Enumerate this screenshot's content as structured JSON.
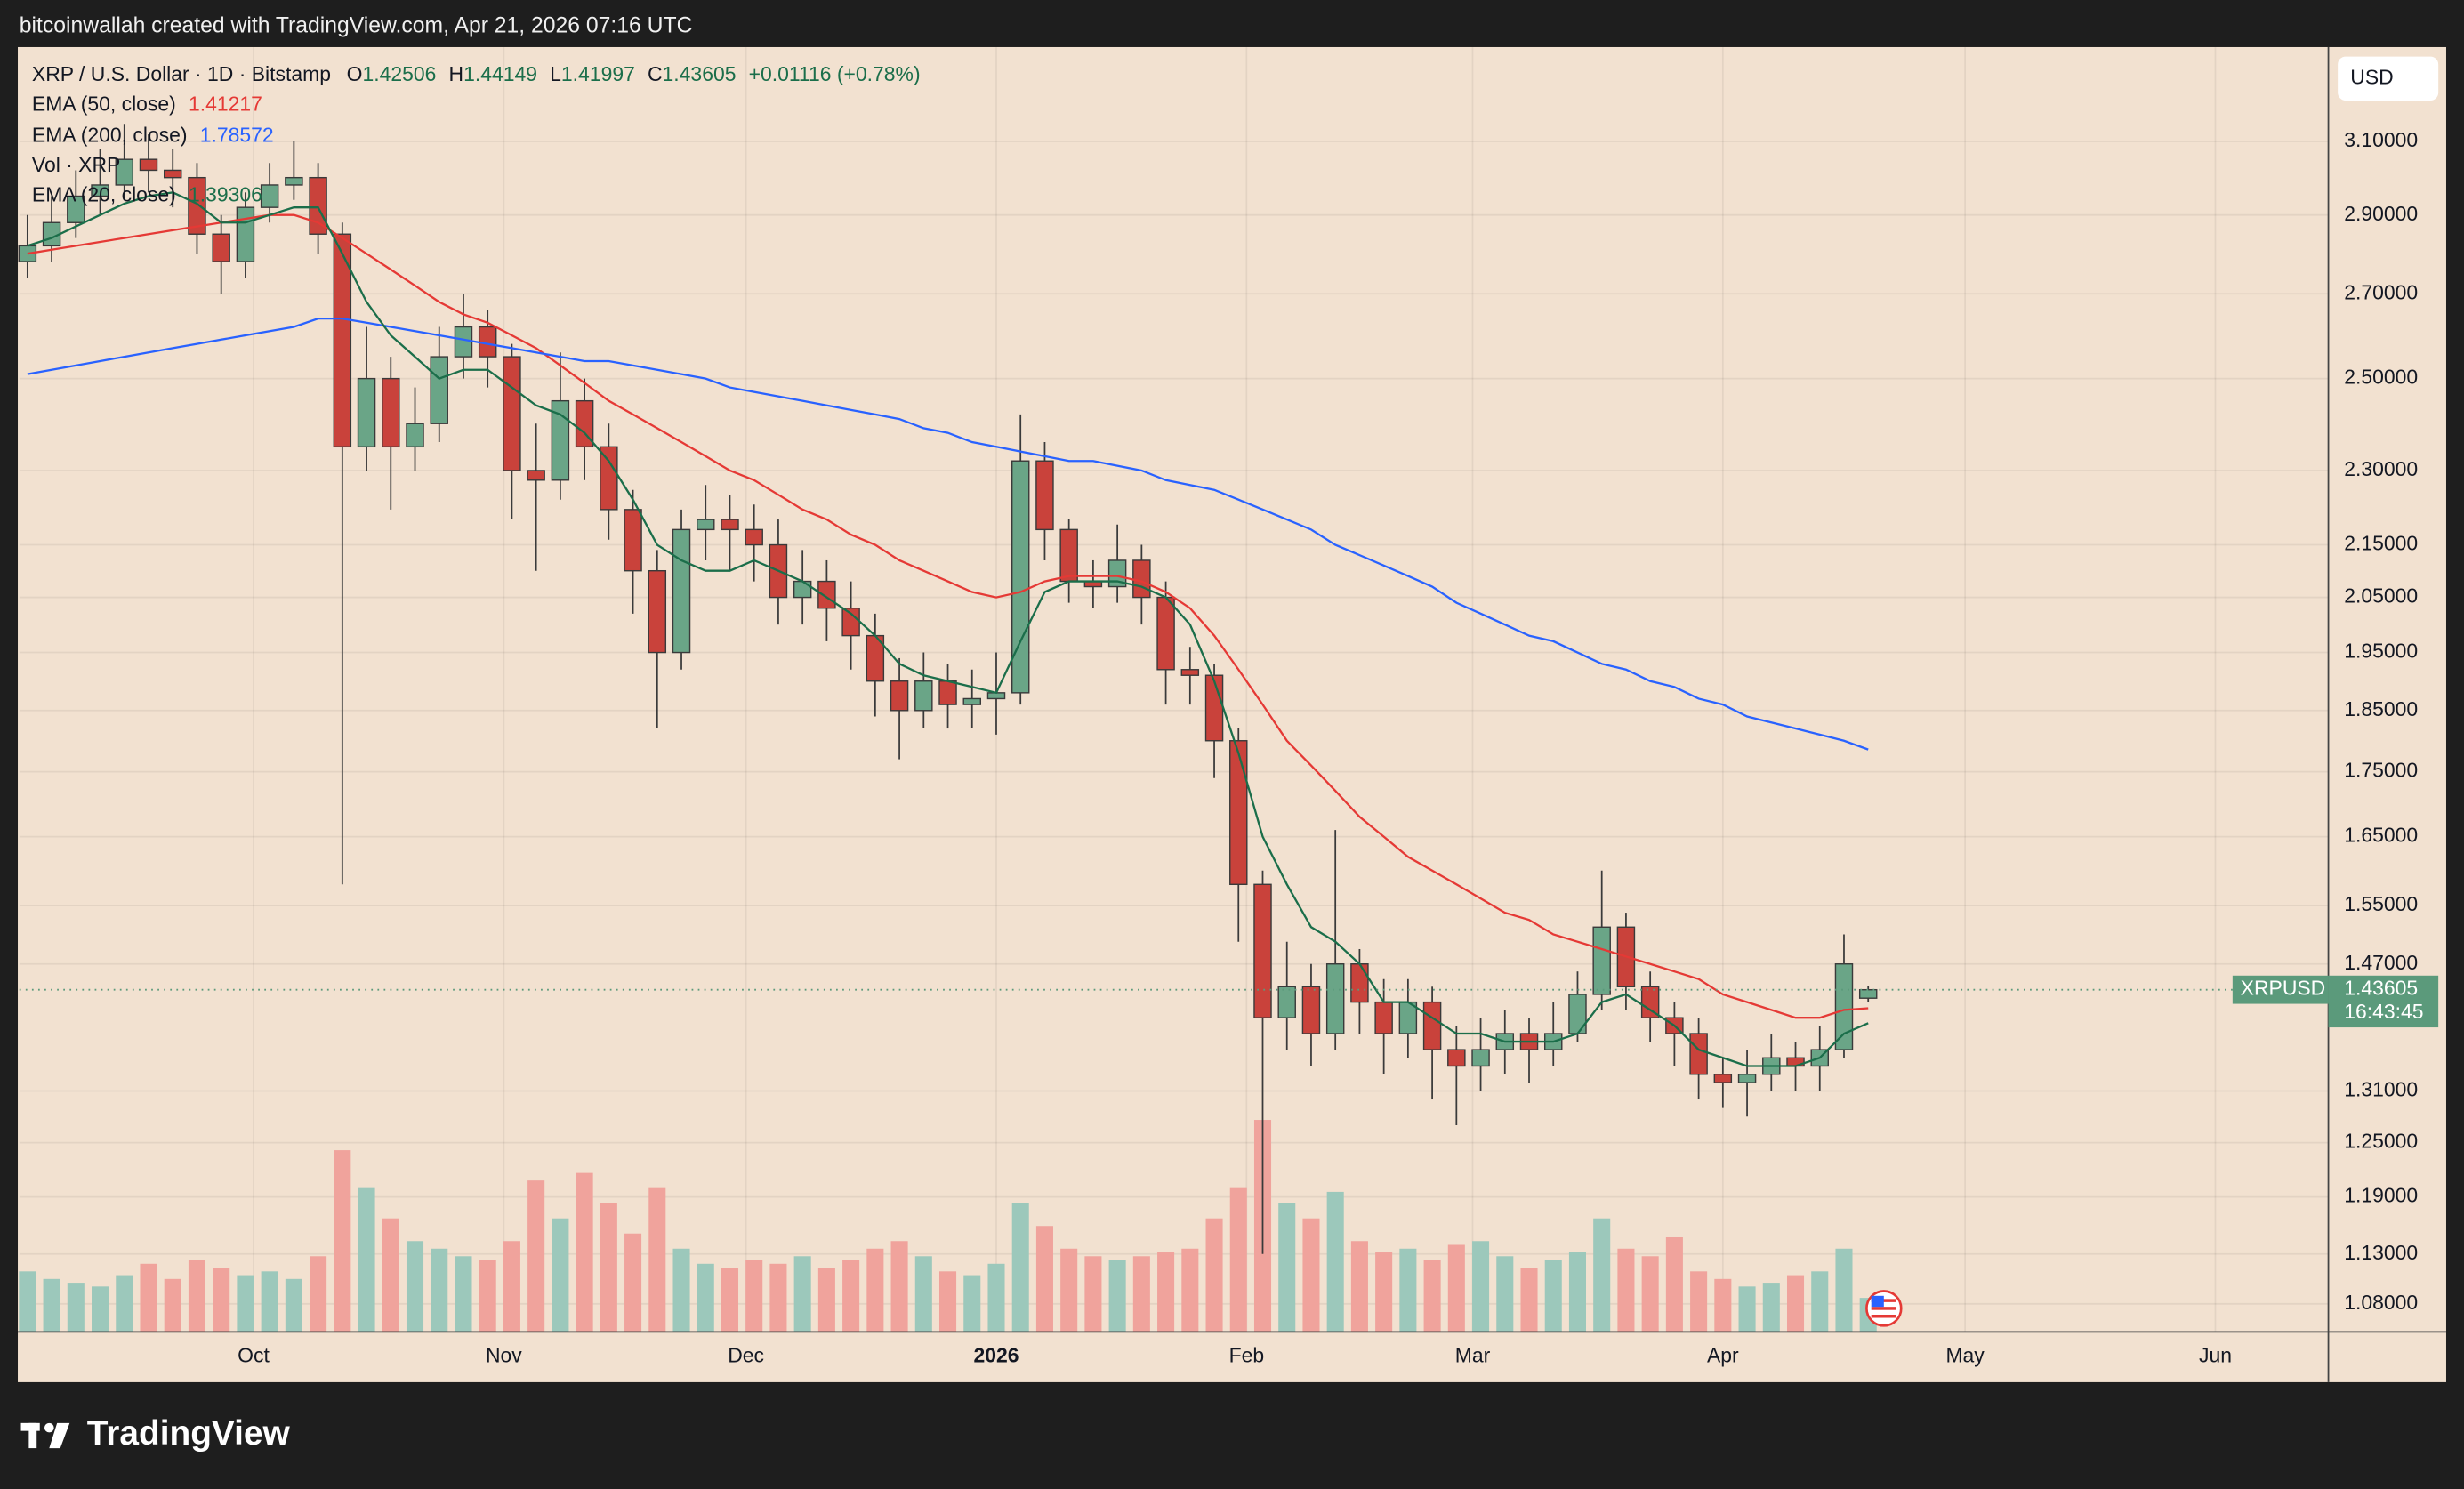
{
  "header": {
    "text": "bitcoinwallah created with TradingView.com, Apr 21, 2026 07:16 UTC"
  },
  "footer": {
    "logo": "TradingView"
  },
  "chart_data": {
    "type": "candlestick",
    "title": "XRP / U.S. Dollar · 1D · Bitstamp",
    "ohlc_labels": [
      "O",
      "H",
      "L",
      "C"
    ],
    "change": "+0.01116 (+0.78%)",
    "currency": "USD",
    "symbol": "XRPUSD",
    "countdown": "16:43:45",
    "up_color": "#6aa587",
    "down_color": "#c9423b",
    "x": [
      1,
      4,
      7,
      10,
      13,
      16,
      19,
      22,
      25,
      28,
      31,
      34,
      37,
      40,
      43,
      46,
      49,
      52,
      55,
      58,
      61,
      64,
      67,
      70,
      73,
      76,
      79,
      82,
      85,
      88,
      91,
      94,
      97,
      100,
      103,
      106,
      109,
      112,
      115,
      118,
      121,
      124,
      127,
      130,
      133,
      136,
      139,
      142,
      145,
      148,
      151,
      154,
      157,
      160,
      163,
      166,
      169,
      172,
      175,
      178,
      181,
      184,
      187,
      190,
      193,
      196,
      199,
      202,
      205,
      208,
      211,
      214,
      217,
      220,
      223,
      226,
      229
    ],
    "open": [
      2.78,
      2.82,
      2.88,
      2.95,
      2.98,
      3.05,
      3.02,
      3.0,
      2.85,
      2.78,
      2.92,
      2.98,
      3.0,
      2.85,
      2.35,
      2.5,
      2.35,
      2.4,
      2.55,
      2.62,
      2.55,
      2.3,
      2.28,
      2.45,
      2.35,
      2.22,
      2.1,
      1.95,
      2.18,
      2.2,
      2.18,
      2.15,
      2.05,
      2.08,
      2.03,
      1.98,
      1.9,
      1.85,
      1.9,
      1.86,
      1.87,
      1.88,
      2.32,
      2.18,
      2.08,
      2.07,
      2.12,
      2.05,
      1.92,
      1.91,
      1.8,
      1.58,
      1.4,
      1.44,
      1.38,
      1.47,
      1.42,
      1.38,
      1.42,
      1.36,
      1.34,
      1.36,
      1.38,
      1.36,
      1.38,
      1.43,
      1.52,
      1.44,
      1.4,
      1.38,
      1.33,
      1.32,
      1.33,
      1.35,
      1.34,
      1.36,
      1.42506
    ],
    "high": [
      2.9,
      2.95,
      3.02,
      3.08,
      3.15,
      3.12,
      3.08,
      3.04,
      2.9,
      2.96,
      3.04,
      3.1,
      3.04,
      2.88,
      2.62,
      2.55,
      2.48,
      2.62,
      2.7,
      2.66,
      2.58,
      2.4,
      2.56,
      2.5,
      2.4,
      2.26,
      2.14,
      2.22,
      2.27,
      2.25,
      2.23,
      2.2,
      2.14,
      2.12,
      2.08,
      2.02,
      1.94,
      1.95,
      1.93,
      1.92,
      1.95,
      2.42,
      2.36,
      2.2,
      2.12,
      2.19,
      2.15,
      2.08,
      1.96,
      1.93,
      1.82,
      1.6,
      1.5,
      1.47,
      1.66,
      1.49,
      1.45,
      1.45,
      1.44,
      1.39,
      1.4,
      1.41,
      1.4,
      1.42,
      1.46,
      1.6,
      1.54,
      1.46,
      1.42,
      1.4,
      1.35,
      1.36,
      1.38,
      1.37,
      1.39,
      1.51,
      1.44149
    ],
    "low": [
      2.74,
      2.78,
      2.84,
      2.9,
      2.94,
      2.96,
      2.92,
      2.8,
      2.7,
      2.74,
      2.88,
      2.94,
      2.8,
      1.58,
      2.3,
      2.22,
      2.3,
      2.36,
      2.5,
      2.48,
      2.2,
      2.1,
      2.24,
      2.28,
      2.16,
      2.02,
      1.82,
      1.92,
      2.12,
      2.1,
      2.08,
      2.0,
      2.0,
      1.97,
      1.92,
      1.84,
      1.77,
      1.82,
      1.82,
      1.82,
      1.81,
      1.86,
      2.12,
      2.04,
      2.03,
      2.04,
      2.0,
      1.86,
      1.86,
      1.74,
      1.5,
      1.13,
      1.36,
      1.34,
      1.36,
      1.38,
      1.33,
      1.35,
      1.3,
      1.27,
      1.31,
      1.33,
      1.32,
      1.34,
      1.37,
      1.41,
      1.41,
      1.37,
      1.34,
      1.3,
      1.29,
      1.28,
      1.31,
      1.31,
      1.31,
      1.35,
      1.41997
    ],
    "close": [
      2.82,
      2.88,
      2.95,
      2.98,
      3.05,
      3.02,
      3.0,
      2.85,
      2.78,
      2.92,
      2.98,
      3.0,
      2.85,
      2.35,
      2.5,
      2.35,
      2.4,
      2.55,
      2.62,
      2.55,
      2.3,
      2.28,
      2.45,
      2.35,
      2.22,
      2.1,
      1.95,
      2.18,
      2.2,
      2.18,
      2.15,
      2.05,
      2.08,
      2.03,
      1.98,
      1.9,
      1.85,
      1.9,
      1.86,
      1.87,
      1.88,
      2.32,
      2.18,
      2.08,
      2.07,
      2.12,
      2.05,
      1.92,
      1.91,
      1.8,
      1.58,
      1.4,
      1.44,
      1.38,
      1.47,
      1.42,
      1.38,
      1.42,
      1.36,
      1.34,
      1.36,
      1.38,
      1.36,
      1.38,
      1.43,
      1.52,
      1.44,
      1.4,
      1.38,
      1.33,
      1.32,
      1.33,
      1.35,
      1.34,
      1.36,
      1.47,
      1.43605
    ],
    "volume": {
      "name": "Vol · XRP",
      "up_color": "#9cc8bb",
      "down_color": "#f0a39c",
      "values": [
        80,
        70,
        65,
        60,
        75,
        90,
        70,
        95,
        85,
        75,
        80,
        70,
        100,
        240,
        190,
        150,
        120,
        110,
        100,
        95,
        120,
        200,
        150,
        210,
        170,
        130,
        190,
        110,
        90,
        85,
        95,
        90,
        100,
        85,
        95,
        110,
        120,
        100,
        80,
        75,
        90,
        170,
        140,
        110,
        100,
        95,
        100,
        105,
        110,
        150,
        190,
        280,
        170,
        150,
        185,
        120,
        105,
        110,
        95,
        115,
        120,
        100,
        85,
        95,
        105,
        150,
        110,
        100,
        125,
        80,
        70,
        60,
        65,
        75,
        80,
        110,
        45
      ]
    },
    "series": [
      {
        "name": "EMA (50, close)",
        "color": "#e53935",
        "values": [
          2.8,
          2.81,
          2.82,
          2.83,
          2.84,
          2.85,
          2.86,
          2.87,
          2.88,
          2.89,
          2.9,
          2.9,
          2.88,
          2.84,
          2.8,
          2.76,
          2.72,
          2.68,
          2.65,
          2.63,
          2.6,
          2.57,
          2.53,
          2.49,
          2.45,
          2.42,
          2.39,
          2.36,
          2.33,
          2.3,
          2.28,
          2.25,
          2.22,
          2.2,
          2.17,
          2.15,
          2.12,
          2.1,
          2.08,
          2.06,
          2.05,
          2.06,
          2.08,
          2.09,
          2.09,
          2.09,
          2.08,
          2.06,
          2.03,
          1.98,
          1.92,
          1.86,
          1.8,
          1.76,
          1.72,
          1.68,
          1.65,
          1.62,
          1.6,
          1.58,
          1.56,
          1.54,
          1.53,
          1.51,
          1.5,
          1.49,
          1.48,
          1.47,
          1.46,
          1.45,
          1.43,
          1.42,
          1.41,
          1.4,
          1.4,
          1.41,
          1.41217
        ]
      },
      {
        "name": "EMA (200, close)",
        "color": "#2962ff",
        "values": [
          2.51,
          2.52,
          2.53,
          2.54,
          2.55,
          2.56,
          2.57,
          2.58,
          2.59,
          2.6,
          2.61,
          2.62,
          2.64,
          2.64,
          2.63,
          2.62,
          2.61,
          2.6,
          2.59,
          2.58,
          2.57,
          2.56,
          2.55,
          2.54,
          2.54,
          2.53,
          2.52,
          2.51,
          2.5,
          2.48,
          2.47,
          2.46,
          2.45,
          2.44,
          2.43,
          2.42,
          2.41,
          2.39,
          2.38,
          2.36,
          2.35,
          2.34,
          2.33,
          2.32,
          2.32,
          2.31,
          2.3,
          2.28,
          2.27,
          2.26,
          2.24,
          2.22,
          2.2,
          2.18,
          2.15,
          2.13,
          2.11,
          2.09,
          2.07,
          2.04,
          2.02,
          2.0,
          1.98,
          1.97,
          1.95,
          1.93,
          1.92,
          1.9,
          1.89,
          1.87,
          1.86,
          1.84,
          1.83,
          1.82,
          1.81,
          1.8,
          1.78572
        ]
      },
      {
        "name": "EMA (20, close)",
        "color": "#1b6e4a",
        "values": [
          2.82,
          2.84,
          2.87,
          2.9,
          2.93,
          2.95,
          2.96,
          2.93,
          2.88,
          2.88,
          2.9,
          2.92,
          2.92,
          2.8,
          2.68,
          2.6,
          2.55,
          2.5,
          2.52,
          2.52,
          2.48,
          2.44,
          2.42,
          2.38,
          2.32,
          2.24,
          2.15,
          2.12,
          2.1,
          2.1,
          2.12,
          2.1,
          2.08,
          2.05,
          2.02,
          1.98,
          1.93,
          1.91,
          1.9,
          1.89,
          1.88,
          1.97,
          2.06,
          2.08,
          2.08,
          2.08,
          2.07,
          2.05,
          2.0,
          1.9,
          1.78,
          1.65,
          1.58,
          1.52,
          1.5,
          1.47,
          1.42,
          1.42,
          1.4,
          1.38,
          1.38,
          1.37,
          1.37,
          1.37,
          1.38,
          1.42,
          1.43,
          1.41,
          1.39,
          1.36,
          1.35,
          1.34,
          1.34,
          1.34,
          1.35,
          1.38,
          1.39306
        ]
      }
    ],
    "xlim": [
      0,
      286
    ],
    "xticks": [
      {
        "value": 29,
        "label": "Oct"
      },
      {
        "value": 60,
        "label": "Nov"
      },
      {
        "value": 90,
        "label": "Dec"
      },
      {
        "value": 121,
        "label": "2026"
      },
      {
        "value": 152,
        "label": "Feb"
      },
      {
        "value": 180,
        "label": "Mar"
      },
      {
        "value": 211,
        "label": "Apr"
      },
      {
        "value": 241,
        "label": "May"
      },
      {
        "value": 272,
        "label": "Jun"
      }
    ],
    "ylim": [
      1.0528,
      3.377
    ],
    "yticks": [
      {
        "value": 3.1,
        "label": "3.10000"
      },
      {
        "value": 2.9,
        "label": "2.90000"
      },
      {
        "value": 2.7,
        "label": "2.70000"
      },
      {
        "value": 2.5,
        "label": "2.50000"
      },
      {
        "value": 2.3,
        "label": "2.30000"
      },
      {
        "value": 2.15,
        "label": "2.15000"
      },
      {
        "value": 2.05,
        "label": "2.05000"
      },
      {
        "value": 1.95,
        "label": "1.95000"
      },
      {
        "value": 1.85,
        "label": "1.85000"
      },
      {
        "value": 1.75,
        "label": "1.75000"
      },
      {
        "value": 1.65,
        "label": "1.65000"
      },
      {
        "value": 1.55,
        "label": "1.55000"
      },
      {
        "value": 1.47,
        "label": "1.47000"
      },
      {
        "value": 1.31,
        "label": "1.31000"
      },
      {
        "value": 1.25,
        "label": "1.25000"
      },
      {
        "value": 1.19,
        "label": "1.19000"
      },
      {
        "value": 1.13,
        "label": "1.13000"
      },
      {
        "value": 1.08,
        "label": "1.08000"
      }
    ],
    "log_scale": true,
    "grid": true
  }
}
